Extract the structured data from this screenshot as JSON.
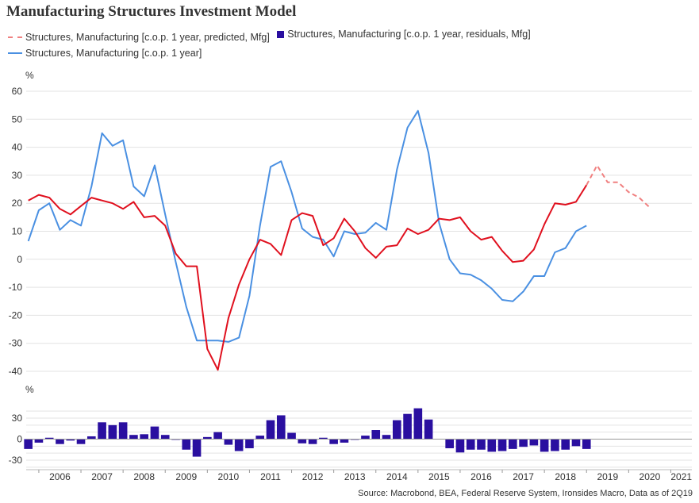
{
  "chart_title": "Manufacturing Structures Investment Model",
  "source": "Source: Macrobond, BEA, Federal Reserve System, Ironsides Macro, Data as of 2Q19",
  "colors": {
    "predicted": "#e0101e",
    "predicted_forecast": "#f08080",
    "actual": "#4a90e2",
    "residuals": "#2a0fa0",
    "grid": "#e3e3e3"
  },
  "chart_data": [
    {
      "type": "line",
      "ylabel": "%",
      "ylim": [
        -45,
        65
      ],
      "yticks": [
        60,
        50,
        40,
        30,
        20,
        10,
        0,
        -10,
        -20,
        -30,
        -40
      ],
      "series": [
        {
          "name": "Structures, Manufacturing [c.o.p. 1 year, predicted, Mfg]",
          "x": [
            2005.75,
            2006.0,
            2006.25,
            2006.5,
            2006.75,
            2007.0,
            2007.25,
            2007.5,
            2007.75,
            2008.0,
            2008.25,
            2008.5,
            2008.75,
            2009.0,
            2009.25,
            2009.5,
            2009.75,
            2010.0,
            2010.25,
            2010.5,
            2010.75,
            2011.0,
            2011.25,
            2011.5,
            2011.75,
            2012.0,
            2012.25,
            2012.5,
            2012.75,
            2013.0,
            2013.25,
            2013.5,
            2013.75,
            2014.0,
            2014.25,
            2014.5,
            2014.75,
            2015.0,
            2015.25,
            2015.5,
            2015.75,
            2016.0,
            2016.25,
            2016.5,
            2016.75,
            2017.0,
            2017.25,
            2017.5,
            2017.75,
            2018.0,
            2018.25,
            2018.5,
            2018.75,
            2019.0
          ],
          "values": [
            21,
            23,
            22,
            18,
            16,
            19,
            22,
            21,
            20,
            18,
            20.5,
            15,
            15.5,
            12,
            2,
            -2.5,
            -2.5,
            -32,
            -39.5,
            -21,
            -9,
            0,
            7,
            5.5,
            1.5,
            14,
            16.5,
            15.5,
            5,
            7.5,
            14.5,
            10,
            4,
            0.5,
            4.5,
            5,
            11,
            9,
            10.5,
            14.5,
            14,
            15,
            10,
            7,
            8,
            3,
            -1,
            -0.5,
            3.5,
            12.5,
            20,
            19.5,
            20.5,
            26.5
          ]
        },
        {
          "name": "Structures, Manufacturing [c.o.p. 1 year, predicted, Mfg] forecast",
          "x": [
            2019.0,
            2019.25,
            2019.5,
            2019.75,
            2020.0,
            2020.25,
            2020.5
          ],
          "values": [
            26.5,
            33.5,
            27.5,
            27.5,
            24,
            22,
            18.5
          ]
        },
        {
          "name": "Structures, Manufacturing [c.o.p. 1 year]",
          "x": [
            2005.75,
            2006.0,
            2006.25,
            2006.5,
            2006.75,
            2007.0,
            2007.25,
            2007.5,
            2007.75,
            2008.0,
            2008.25,
            2008.5,
            2008.75,
            2009.0,
            2009.25,
            2009.5,
            2009.75,
            2010.0,
            2010.25,
            2010.5,
            2010.75,
            2011.0,
            2011.25,
            2011.5,
            2011.75,
            2012.0,
            2012.25,
            2012.5,
            2012.75,
            2013.0,
            2013.25,
            2013.5,
            2013.75,
            2014.0,
            2014.25,
            2014.5,
            2014.75,
            2015.0,
            2015.25,
            2015.5,
            2015.75,
            2016.0,
            2016.25,
            2016.5,
            2016.75,
            2017.0,
            2017.25,
            2017.5,
            2017.75,
            2018.0,
            2018.25,
            2018.5,
            2018.75,
            2019.0
          ],
          "values": [
            6.5,
            17.5,
            20,
            10.5,
            14,
            12,
            26,
            45,
            40.5,
            42.5,
            26,
            22.5,
            33.5,
            16,
            -1,
            -17,
            -29,
            -29,
            -29,
            -29.5,
            -28,
            -13,
            12,
            33,
            35,
            24,
            11,
            8,
            7,
            1,
            10,
            9,
            9.5,
            13,
            10.5,
            32,
            47,
            53,
            38,
            13,
            0,
            -5,
            -5.5,
            -7.5,
            -10.5,
            -14.5,
            -15,
            -11.5,
            -6,
            -6,
            2.5,
            4,
            10,
            12
          ]
        }
      ]
    },
    {
      "type": "bar",
      "name": "Structures, Manufacturing [c.o.p. 1 year, residuals, Mfg]",
      "ylabel": "%",
      "ylim": [
        -40,
        45
      ],
      "yticks": [
        30,
        0,
        -30
      ],
      "x": [
        2005.75,
        2006.0,
        2006.25,
        2006.5,
        2006.75,
        2007.0,
        2007.25,
        2007.5,
        2007.75,
        2008.0,
        2008.25,
        2008.5,
        2008.75,
        2009.0,
        2009.25,
        2009.5,
        2009.75,
        2010.0,
        2010.25,
        2010.5,
        2010.75,
        2011.0,
        2011.25,
        2011.5,
        2011.75,
        2012.0,
        2012.25,
        2012.5,
        2012.75,
        2013.0,
        2013.25,
        2013.5,
        2013.75,
        2014.0,
        2014.25,
        2014.5,
        2014.75,
        2015.0,
        2015.25,
        2015.5,
        2015.75,
        2016.0,
        2016.25,
        2016.5,
        2016.75,
        2017.0,
        2017.25,
        2017.5,
        2017.75,
        2018.0,
        2018.25,
        2018.5,
        2018.75,
        2019.0
      ],
      "values": [
        -14,
        -5,
        2,
        -7,
        -2,
        -7,
        4,
        24,
        20,
        24,
        6,
        7,
        18,
        6,
        -1,
        -15,
        -25,
        3,
        10,
        -8,
        -17,
        -13,
        5,
        27,
        34,
        9,
        -6,
        -7,
        2,
        -7,
        -5,
        -1,
        5,
        13,
        6,
        27,
        36,
        44,
        28,
        0,
        -13,
        -19,
        -15,
        -15,
        -18,
        -17,
        -14,
        -11,
        -9,
        -18,
        -17,
        -15,
        -10,
        -14
      ]
    }
  ],
  "x_ticks": [
    {
      "label": "2006",
      "x": 2006.5
    },
    {
      "label": "2007",
      "x": 2007.5
    },
    {
      "label": "2008",
      "x": 2008.5
    },
    {
      "label": "2009",
      "x": 2009.5
    },
    {
      "label": "2010",
      "x": 2010.5
    },
    {
      "label": "2011",
      "x": 2011.5
    },
    {
      "label": "2012",
      "x": 2012.5
    },
    {
      "label": "2013",
      "x": 2013.5
    },
    {
      "label": "2014",
      "x": 2014.5
    },
    {
      "label": "2015",
      "x": 2015.5
    },
    {
      "label": "2016",
      "x": 2016.5
    },
    {
      "label": "2017",
      "x": 2017.5
    },
    {
      "label": "2018",
      "x": 2018.5
    },
    {
      "label": "2019",
      "x": 2019.5
    },
    {
      "label": "2020",
      "x": 2020.5
    },
    {
      "label": "2021",
      "x": 2021.25
    }
  ],
  "xlim": [
    2005.7,
    2021.5
  ],
  "legend": {
    "predicted": "Structures, Manufacturing [c.o.p. 1 year, predicted, Mfg]",
    "residuals": "Structures, Manufacturing [c.o.p. 1 year, residuals, Mfg]",
    "actual": "Structures, Manufacturing [c.o.p. 1 year]"
  },
  "units": {
    "top": "%",
    "bottom": "%"
  }
}
